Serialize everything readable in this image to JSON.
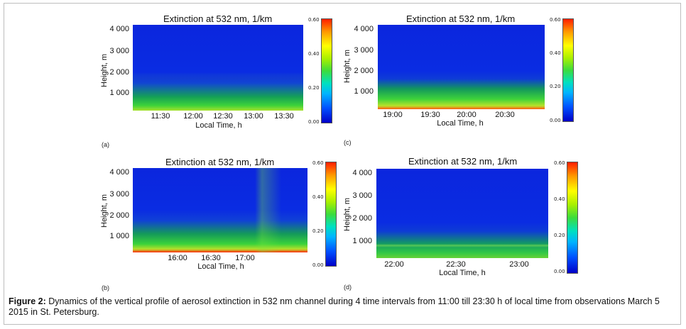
{
  "panels": [
    {
      "letter": "(a)",
      "title": "Extinction at 532 nm, 1/km",
      "ylabel": "Height, m",
      "xlabel": "Local Time, h",
      "yticks": [
        "4 000",
        "3 000",
        "2 000",
        "1 000"
      ],
      "xticks": [
        "11:30",
        "12:00",
        "12:30",
        "13:00",
        "13:30"
      ],
      "colorbar_ticks": [
        "0.60",
        "0.40",
        "0.20",
        "0.00"
      ]
    },
    {
      "letter": "(b)",
      "title": "Extinction at 532 nm, 1/km",
      "ylabel": "Height, m",
      "xlabel": "Local Time, h",
      "yticks": [
        "4 000",
        "3 000",
        "2 000",
        "1 000"
      ],
      "xticks": [
        "16:00",
        "16:30",
        "17:00"
      ],
      "colorbar_ticks": [
        "0.60",
        "0.40",
        "0.20",
        "0.00"
      ]
    },
    {
      "letter": "(c)",
      "title": "Extinction at 532 nm, 1/km",
      "ylabel": "Height, m",
      "xlabel": "Local Time, h",
      "yticks": [
        "4 000",
        "3 000",
        "2 000",
        "1 000"
      ],
      "xticks": [
        "19:00",
        "19:30",
        "20:00",
        "20:30"
      ],
      "colorbar_ticks": [
        "0.60",
        "0.40",
        "0.20",
        "0.00"
      ]
    },
    {
      "letter": "(d)",
      "title": "Extinction at 532 nm, 1/km",
      "ylabel": "Height, m",
      "xlabel": "Local Time, h",
      "yticks": [
        "4 000",
        "3 000",
        "2 000",
        "1 000"
      ],
      "xticks": [
        "22:00",
        "22:30",
        "23:00"
      ],
      "colorbar_ticks": [
        "0.60",
        "0.40",
        "0.20",
        "0.00"
      ]
    }
  ],
  "caption": {
    "label": "Figure 2:",
    "text": " Dynamics of the vertical profile of aerosol extinction in 532 nm channel during 4 time intervals from 11:00 till 23:30 h of local time from observations March 5 2015 in St. Petersburg."
  },
  "colors": {
    "colormap_low": "#0000c8",
    "colormap_mid": "#3cdc3c",
    "colormap_high": "#ff1e00"
  }
}
